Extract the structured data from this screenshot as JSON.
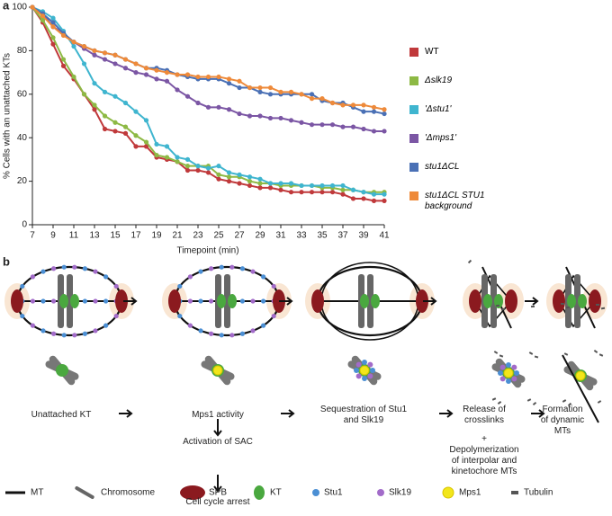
{
  "chart_data": {
    "type": "line",
    "panel_label": "a",
    "y_label": "% Cells with an unattached KTs",
    "x_label": "Timepoint (min)",
    "xlim": [
      7,
      41
    ],
    "xticks": [
      7,
      9,
      11,
      13,
      15,
      17,
      19,
      21,
      23,
      25,
      27,
      29,
      31,
      33,
      35,
      37,
      39,
      41
    ],
    "ylim": [
      0,
      100
    ],
    "yticks": [
      0,
      20,
      40,
      60,
      80,
      100
    ],
    "x": [
      7,
      8,
      9,
      10,
      11,
      12,
      13,
      14,
      15,
      16,
      17,
      18,
      19,
      20,
      21,
      22,
      23,
      24,
      25,
      26,
      27,
      28,
      29,
      30,
      31,
      32,
      33,
      34,
      35,
      36,
      37,
      38,
      39,
      40,
      41
    ],
    "series": [
      {
        "name": "WT",
        "color": "#c0393b",
        "values": [
          100,
          93,
          83,
          73,
          67,
          60,
          53,
          44,
          43,
          42,
          36,
          36,
          31,
          30,
          29,
          25,
          25,
          24,
          21,
          20,
          19,
          18,
          17,
          17,
          16,
          15,
          15,
          15,
          15,
          15,
          14,
          12,
          12,
          11,
          11
        ]
      },
      {
        "name": "Δslk19",
        "color": "#8db944",
        "values": [
          100,
          94,
          86,
          76,
          68,
          60,
          55,
          50,
          47,
          45,
          41,
          38,
          32,
          31,
          29,
          27,
          27,
          27,
          23,
          22,
          22,
          20,
          19,
          19,
          18,
          18,
          18,
          18,
          17,
          17,
          16,
          16,
          15,
          15,
          15
        ]
      },
      {
        "name": "'Δstu1'",
        "color": "#3fb5cf",
        "values": [
          100,
          98,
          95,
          89,
          82,
          74,
          65,
          61,
          59,
          56,
          52,
          48,
          37,
          36,
          31,
          30,
          27,
          26,
          27,
          24,
          23,
          22,
          21,
          19,
          19,
          19,
          18,
          18,
          18,
          18,
          18,
          16,
          15,
          14,
          14
        ]
      },
      {
        "name": "'Δmps1'",
        "color": "#7b56a4",
        "values": [
          100,
          97,
          91,
          88,
          84,
          81,
          78,
          76,
          74,
          72,
          70,
          69,
          67,
          66,
          62,
          59,
          56,
          54,
          54,
          53,
          51,
          50,
          50,
          49,
          49,
          48,
          47,
          46,
          46,
          46,
          45,
          45,
          44,
          43,
          43
        ]
      },
      {
        "name": "stu1ΔCL",
        "color": "#4a70b5",
        "values": [
          100,
          97,
          93,
          88,
          84,
          82,
          80,
          79,
          78,
          76,
          74,
          72,
          72,
          71,
          69,
          68,
          67,
          67,
          67,
          65,
          63,
          63,
          61,
          60,
          60,
          60,
          60,
          60,
          57,
          56,
          56,
          54,
          52,
          52,
          51
        ]
      },
      {
        "name": "stu1ΔCL STU1 background",
        "color": "#ee8a3a",
        "values": [
          100,
          96,
          91,
          87,
          84,
          82,
          80,
          79,
          78,
          76,
          74,
          72,
          71,
          70,
          69,
          69,
          68,
          68,
          68,
          67,
          66,
          63,
          63,
          63,
          61,
          61,
          60,
          58,
          58,
          56,
          55,
          55,
          55,
          54,
          53
        ]
      }
    ]
  },
  "diagram": {
    "panel_label": "b",
    "steps": [
      "Unattached KT",
      "Mps1 activity",
      "Sequestration of Stu1 and Slk19",
      "Release of crosslinks",
      "Formation of dynamic MTs"
    ],
    "plus": "+",
    "release_detail": "Depolymerization of interpolar and kinetochore MTs",
    "sac": [
      "Activation of SAC",
      "Cell cycle arrest"
    ],
    "legend": [
      "MT",
      "Chromosome",
      "SPB",
      "KT",
      "Stu1",
      "Slk19",
      "Mps1",
      "Tubulin"
    ]
  }
}
